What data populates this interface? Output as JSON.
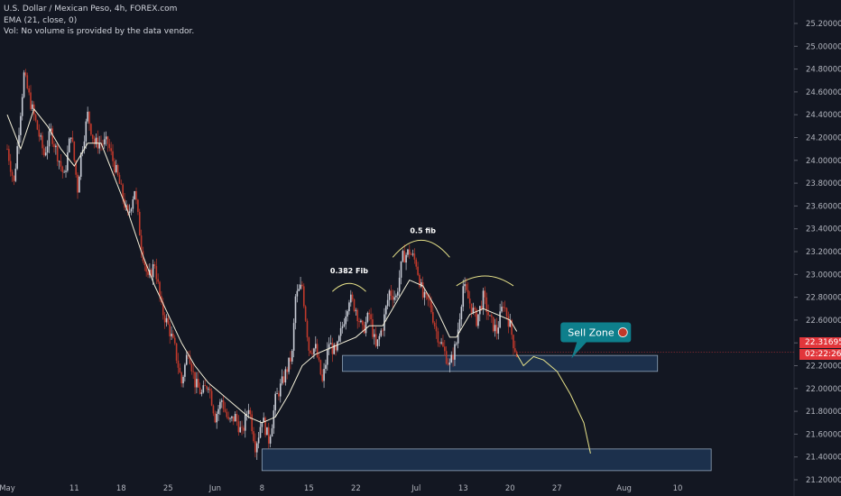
{
  "header": {
    "title": "U.S. Dollar / Mexican Peso, 4h, FOREX.com",
    "indicator": "EMA (21, close, 0)",
    "volume_note": "Vol: No volume is provided by the data vendor."
  },
  "price_tag": {
    "price": "22.31695",
    "countdown": "02:22:26"
  },
  "colors": {
    "background": "#131722",
    "up": "#c8ccd6",
    "down": "#c0392b",
    "ema": "#f5f1da",
    "zone_fill": "#1e3554",
    "zone_stroke": "#8fa3b8",
    "annotation": "#e8e38a",
    "callout": "#0e7f8c",
    "price_tag": "#e2363b"
  },
  "chart_data": {
    "type": "candlestick",
    "title": "U.S. Dollar / Mexican Peso, 4h, FOREX.com",
    "ylim": [
      21.1,
      25.35
    ],
    "y_ticks": [
      "25.20000",
      "25.00000",
      "24.80000",
      "24.60000",
      "24.40000",
      "24.20000",
      "24.00000",
      "23.80000",
      "23.60000",
      "23.40000",
      "23.20000",
      "23.00000",
      "22.80000",
      "22.60000",
      "22.40000",
      "22.20000",
      "22.00000",
      "21.80000",
      "21.60000",
      "21.40000",
      "21.20000"
    ],
    "x_ticks": [
      "May",
      "11",
      "18",
      "25",
      "Jun",
      "8",
      "15",
      "22",
      "Jul",
      "13",
      "20",
      "27",
      "Aug",
      "10"
    ],
    "x_tick_days": [
      0,
      10,
      17,
      24,
      31,
      38,
      45,
      52,
      61,
      68,
      75,
      82,
      92,
      100
    ],
    "series": [
      {
        "name": "U.S. Dollar / Mexican Peso",
        "kind": "ohlc",
        "anchors": [
          [
            0,
            24.1
          ],
          [
            1,
            23.8
          ],
          [
            2.5,
            24.75
          ],
          [
            3.5,
            24.5
          ],
          [
            5.5,
            24.05
          ],
          [
            6.5,
            24.25
          ],
          [
            8.5,
            23.85
          ],
          [
            9.5,
            24.25
          ],
          [
            10.5,
            23.75
          ],
          [
            11,
            24.05
          ],
          [
            12,
            24.4
          ],
          [
            13,
            24.15
          ],
          [
            15,
            24.15
          ],
          [
            16.5,
            23.85
          ],
          [
            18,
            23.5
          ],
          [
            19,
            23.75
          ],
          [
            20,
            23.25
          ],
          [
            21,
            22.95
          ],
          [
            22,
            23.1
          ],
          [
            23,
            22.7
          ],
          [
            24,
            22.55
          ],
          [
            25,
            22.35
          ],
          [
            26,
            22.05
          ],
          [
            27,
            22.35
          ],
          [
            28,
            22.05
          ],
          [
            29,
            21.95
          ],
          [
            30,
            22.05
          ],
          [
            31,
            21.75
          ],
          [
            32,
            21.9
          ],
          [
            33,
            21.7
          ],
          [
            34,
            21.75
          ],
          [
            35,
            21.6
          ],
          [
            36,
            21.85
          ],
          [
            37,
            21.5
          ],
          [
            37.5,
            21.6
          ],
          [
            38,
            21.75
          ],
          [
            39,
            21.55
          ],
          [
            39.5,
            21.7
          ],
          [
            40,
            21.9
          ],
          [
            41,
            22.05
          ],
          [
            42.5,
            22.3
          ],
          [
            43,
            22.8
          ],
          [
            44,
            22.9
          ],
          [
            45,
            22.35
          ],
          [
            46,
            22.35
          ],
          [
            47,
            22.05
          ],
          [
            48,
            22.4
          ],
          [
            49,
            22.3
          ],
          [
            50,
            22.55
          ],
          [
            51,
            22.8
          ],
          [
            52,
            22.7
          ],
          [
            53,
            22.5
          ],
          [
            54,
            22.65
          ],
          [
            55,
            22.35
          ],
          [
            56,
            22.55
          ],
          [
            57,
            22.85
          ],
          [
            58,
            22.8
          ],
          [
            59,
            23.15
          ],
          [
            60,
            23.2
          ],
          [
            61,
            23.1
          ],
          [
            62,
            22.8
          ],
          [
            63,
            22.75
          ],
          [
            64,
            22.5
          ],
          [
            65,
            22.35
          ],
          [
            66,
            22.2
          ],
          [
            67,
            22.4
          ],
          [
            68,
            22.9
          ],
          [
            69,
            22.75
          ],
          [
            70,
            22.6
          ],
          [
            71,
            22.8
          ],
          [
            72,
            22.6
          ],
          [
            73,
            22.5
          ],
          [
            74,
            22.75
          ],
          [
            75,
            22.55
          ],
          [
            75.5,
            22.4
          ],
          [
            76,
            22.3
          ]
        ]
      },
      {
        "name": "EMA (21, close, 0)",
        "kind": "line",
        "points": [
          [
            0,
            24.4
          ],
          [
            2,
            24.1
          ],
          [
            4,
            24.45
          ],
          [
            6,
            24.3
          ],
          [
            8,
            24.1
          ],
          [
            10,
            23.95
          ],
          [
            12,
            24.15
          ],
          [
            14,
            24.15
          ],
          [
            16,
            23.85
          ],
          [
            18,
            23.55
          ],
          [
            20,
            23.2
          ],
          [
            22,
            22.9
          ],
          [
            24,
            22.65
          ],
          [
            26,
            22.4
          ],
          [
            28,
            22.2
          ],
          [
            30,
            22.05
          ],
          [
            32,
            21.95
          ],
          [
            34,
            21.85
          ],
          [
            36,
            21.75
          ],
          [
            38,
            21.7
          ],
          [
            40,
            21.75
          ],
          [
            42,
            21.95
          ],
          [
            44,
            22.2
          ],
          [
            46,
            22.3
          ],
          [
            48,
            22.35
          ],
          [
            50,
            22.4
          ],
          [
            52,
            22.45
          ],
          [
            54,
            22.55
          ],
          [
            56,
            22.55
          ],
          [
            58,
            22.75
          ],
          [
            60,
            22.95
          ],
          [
            62,
            22.9
          ],
          [
            64,
            22.7
          ],
          [
            66,
            22.45
          ],
          [
            67,
            22.45
          ],
          [
            69,
            22.65
          ],
          [
            71,
            22.7
          ],
          [
            73,
            22.65
          ],
          [
            75,
            22.6
          ],
          [
            76,
            22.5
          ]
        ]
      }
    ],
    "zones": [
      {
        "from_day": 50,
        "to_day": 97,
        "low": 22.15,
        "high": 22.29
      },
      {
        "from_day": 38,
        "to_day": 105,
        "low": 21.28,
        "high": 21.47
      }
    ],
    "annotations": [
      {
        "text": "0.382 Fib",
        "day": 51,
        "price": 22.9
      },
      {
        "text": "0.5 fib",
        "day": 62,
        "price": 23.25
      },
      {
        "text": "Sell Zone",
        "day": 89,
        "price": 22.5
      }
    ],
    "projection": [
      [
        76,
        22.3
      ],
      [
        77,
        22.2
      ],
      [
        78.5,
        22.28
      ],
      [
        80,
        22.25
      ],
      [
        82,
        22.15
      ],
      [
        84,
        21.95
      ],
      [
        86,
        21.7
      ],
      [
        87,
        21.43
      ]
    ],
    "ema_label": "EMA (21, close, 0)"
  }
}
